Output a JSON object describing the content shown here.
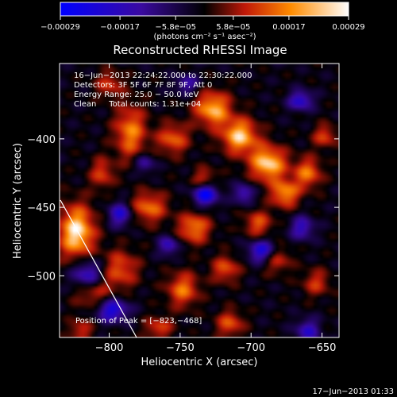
{
  "chart_data": {
    "type": "heatmap",
    "title": "Reconstructed RHESSI Image",
    "xlabel": "Heliocentric X (arcsec)",
    "ylabel": "Heliocentric Y (arcsec)",
    "xlim": [
      -835,
      -638
    ],
    "ylim": [
      -545,
      -345
    ],
    "xticks": [
      -800,
      -750,
      -700,
      -650
    ],
    "yticks": [
      -400,
      -450,
      -500
    ],
    "xtick_labels": [
      "−800",
      "−750",
      "−700",
      "−650"
    ],
    "ytick_labels": [
      "−400",
      "−450",
      "−500"
    ],
    "colorbar": {
      "ticks": [
        -0.00029,
        -0.00017,
        -5.8e-05,
        5.8e-05,
        0.00017,
        0.00029
      ],
      "tick_labels": [
        "−0.00029",
        "−0.00017",
        "−5.8e−05",
        "5.8e−05",
        "0.00017",
        "0.00029"
      ],
      "unit": "(photons cm⁻² s⁻¹ asec⁻²)"
    },
    "annotations": [
      "16−Jun−2013 22:24:22.000 to 22:30:22.000",
      "Detectors: 3F 5F 6F 7F 8F 9F, Att 0",
      "Energy Range: 25.0 − 50.0 keV",
      "Clean     Total counts: 1.31e+04"
    ],
    "peak_label": "Position of Peak = [−823,−468]",
    "peak": [
      -823,
      -468
    ],
    "hotspots": [
      {
        "x": -823,
        "y": -468,
        "sx": 9,
        "sy": 14,
        "a": 1.0
      },
      {
        "x": -688,
        "y": -418,
        "sx": 9,
        "sy": 9,
        "a": 0.95
      },
      {
        "x": -708,
        "y": -398,
        "sx": 9,
        "sy": 9,
        "a": 0.9
      },
      {
        "x": -727,
        "y": -378,
        "sx": 9,
        "sy": 9,
        "a": 0.85
      },
      {
        "x": -676,
        "y": -440,
        "sx": 7,
        "sy": 7,
        "a": 0.75
      },
      {
        "x": -785,
        "y": -395,
        "sx": 8,
        "sy": 14,
        "a": 0.7
      },
      {
        "x": -755,
        "y": -400,
        "sx": 8,
        "sy": 8,
        "a": 0.6
      },
      {
        "x": -660,
        "y": -425,
        "sx": 7,
        "sy": 8,
        "a": 0.65
      },
      {
        "x": -772,
        "y": -450,
        "sx": 9,
        "sy": 8,
        "a": 0.65
      },
      {
        "x": -740,
        "y": -465,
        "sx": 8,
        "sy": 8,
        "a": 0.7
      },
      {
        "x": -792,
        "y": -495,
        "sx": 9,
        "sy": 10,
        "a": 0.55
      },
      {
        "x": -812,
        "y": -510,
        "sx": 9,
        "sy": 9,
        "a": 0.6
      },
      {
        "x": -748,
        "y": -510,
        "sx": 8,
        "sy": 9,
        "a": 0.65
      },
      {
        "x": -718,
        "y": -495,
        "sx": 7,
        "sy": 7,
        "a": 0.55
      },
      {
        "x": -695,
        "y": -462,
        "sx": 7,
        "sy": 7,
        "a": 0.55
      },
      {
        "x": -682,
        "y": -488,
        "sx": 7,
        "sy": 7,
        "a": 0.5
      },
      {
        "x": -648,
        "y": -398,
        "sx": 6,
        "sy": 6,
        "a": 0.5
      },
      {
        "x": -654,
        "y": -505,
        "sx": 7,
        "sy": 7,
        "a": 0.45
      },
      {
        "x": -805,
        "y": -425,
        "sx": 6,
        "sy": 8,
        "a": 0.5
      },
      {
        "x": -765,
        "y": -538,
        "sx": 7,
        "sy": 6,
        "a": 0.5
      },
      {
        "x": -715,
        "y": -535,
        "sx": 7,
        "sy": 7,
        "a": 0.55
      },
      {
        "x": -820,
        "y": -540,
        "sx": 6,
        "sy": 6,
        "a": 0.45
      },
      {
        "x": -733,
        "y": -430,
        "sx": 6,
        "sy": 6,
        "a": 0.55
      },
      {
        "x": -800,
        "y": -360,
        "sx": 7,
        "sy": 7,
        "a": 0.45
      }
    ],
    "troughs": [
      {
        "x": -732,
        "y": -440,
        "sx": 6,
        "sy": 6,
        "a": 1.0
      },
      {
        "x": -815,
        "y": -500,
        "sx": 8,
        "sy": 8,
        "a": 0.9
      },
      {
        "x": -798,
        "y": -525,
        "sx": 8,
        "sy": 6,
        "a": 0.8
      },
      {
        "x": -692,
        "y": -482,
        "sx": 7,
        "sy": 6,
        "a": 0.8
      },
      {
        "x": -665,
        "y": -372,
        "sx": 6,
        "sy": 5,
        "a": 0.7
      },
      {
        "x": -792,
        "y": -455,
        "sx": 6,
        "sy": 6,
        "a": 0.7
      },
      {
        "x": -758,
        "y": -478,
        "sx": 5,
        "sy": 5,
        "a": 0.6
      },
      {
        "x": -705,
        "y": -440,
        "sx": 5,
        "sy": 5,
        "a": 0.6
      },
      {
        "x": -664,
        "y": -465,
        "sx": 6,
        "sy": 6,
        "a": 0.6
      },
      {
        "x": -745,
        "y": -360,
        "sx": 6,
        "sy": 5,
        "a": 0.5
      },
      {
        "x": -660,
        "y": -540,
        "sx": 6,
        "sy": 6,
        "a": 0.6
      },
      {
        "x": -775,
        "y": -418,
        "sx": 5,
        "sy": 5,
        "a": 0.5
      }
    ]
  },
  "timestamp": "17−Jun−2013 01:33"
}
